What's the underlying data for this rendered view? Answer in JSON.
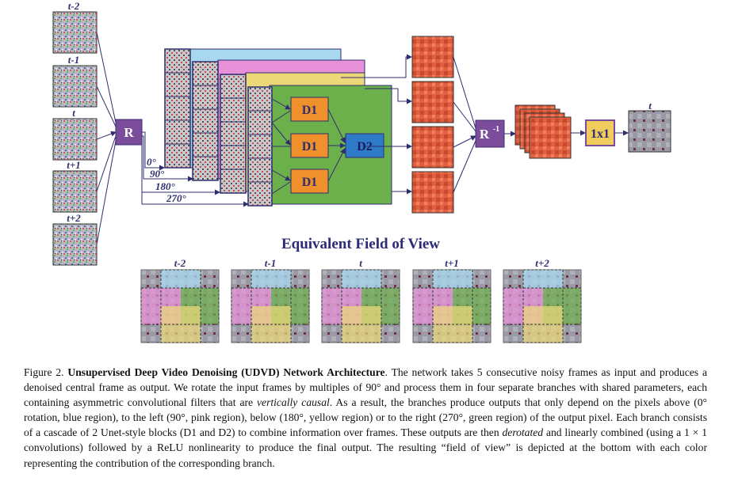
{
  "figure": {
    "input_frames": [
      "t-2",
      "t-1",
      "t",
      "t+1",
      "t+2"
    ],
    "rotate_label": "R",
    "rotations": [
      "0°",
      "90°",
      "180°",
      "270°"
    ],
    "block_d1": "D1",
    "block_d2": "D2",
    "derotate_label": "R",
    "derotate_sup": "-1",
    "conv_label": "1x1",
    "output_label": "t",
    "fov_title": "Equivalent Field of View",
    "fov_frames": [
      "t-2",
      "t-1",
      "t",
      "t+1",
      "t+2"
    ],
    "colors": {
      "blue_branch": "#a8d8f0",
      "pink_branch": "#e890d8",
      "yellow_branch": "#ecd878",
      "green_branch": "#6cb04c",
      "d_blocks": "#f0902c",
      "d2_block": "#2e7cc8",
      "rotate_box": "#7c4c9c",
      "conv_box": "#f0cc5c",
      "arrows": "#2e2e6e"
    }
  },
  "caption": {
    "figure_number": "Figure 2.",
    "title": "Unsupervised Deep Video Denoising (UDVD) Network Architecture",
    "p1": ". The network takes 5 consecutive noisy frames as input and produces a denoised central frame as output. We rotate the input frames by multiples of 90° and process them in four separate branches with shared parameters, each containing asymmetric convolutional filters that are ",
    "italic1": "vertically causal",
    "p2": ". As a result, the branches produce outputs that only depend on the pixels above (0° rotation, blue region), to the left (90°, pink region), below (180°, yellow region) or to the right (270°, green region) of the output pixel. Each branch consists of a cascade of 2 Unet-style blocks (D1 and D2) to combine information over frames. These outputs are then ",
    "italic2": "derotated",
    "p3": " and linearly combined (using a 1 × 1 convolutions) followed by a ReLU nonlinearity to produce the final output. The resulting “field of view” is depicted at the bottom with each color representing the contribution of the corresponding branch."
  }
}
